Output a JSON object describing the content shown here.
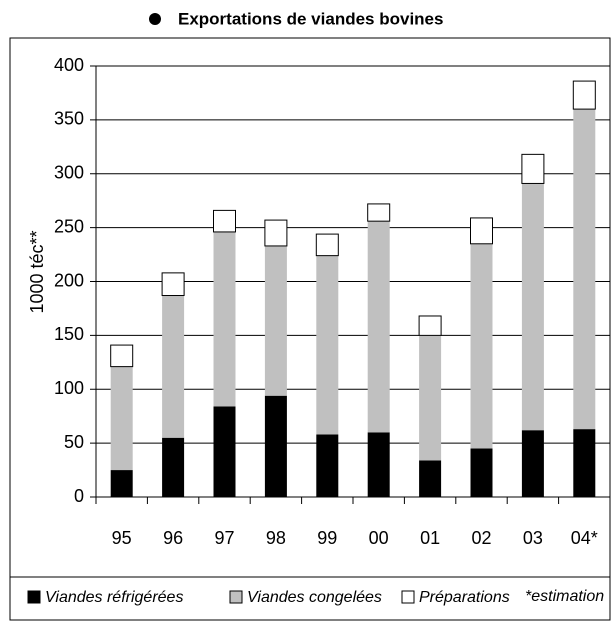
{
  "chart_data": {
    "type": "stacked_bar",
    "title": "Exportations de viandes bovines",
    "y_label": "1000 téc**",
    "note": "*estimation",
    "categories": [
      "95",
      "96",
      "97",
      "98",
      "99",
      "00",
      "01",
      "02",
      "03",
      "04*"
    ],
    "series": [
      {
        "name": "Viandes réfrigérées",
        "color": "#000000",
        "values": [
          25,
          55,
          84,
          94,
          58,
          60,
          34,
          45,
          62,
          63
        ]
      },
      {
        "name": "Viandes congelées",
        "color": "#c0c0c0",
        "values": [
          96,
          132,
          162,
          139,
          166,
          196,
          116,
          190,
          229,
          297
        ]
      },
      {
        "name": "Préparations",
        "color": "#ffffff",
        "values": [
          20,
          21,
          20,
          24,
          20,
          16,
          18,
          24,
          27,
          26
        ]
      }
    ],
    "ylim": [
      0,
      400
    ],
    "yticks": [
      0,
      50,
      100,
      150,
      200,
      250,
      300,
      350,
      400
    ],
    "grid": true
  }
}
